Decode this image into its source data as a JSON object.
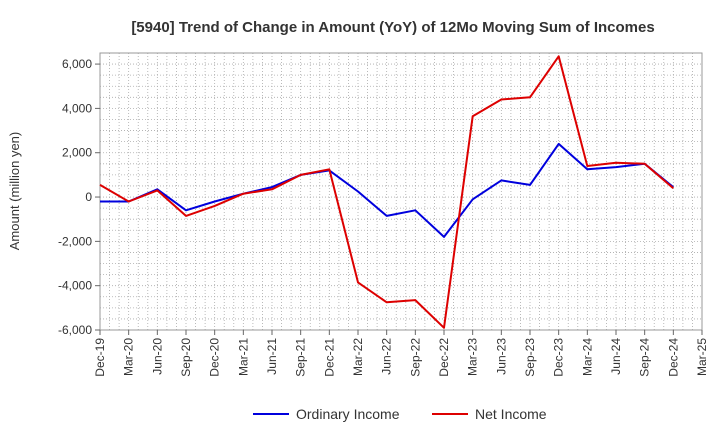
{
  "chart_data": {
    "type": "line",
    "title": "[5940]  Trend of Change in Amount (YoY) of 12Mo Moving Sum of Incomes",
    "ylabel": "Amount (million yen)",
    "xlabel": "",
    "ylim": [
      -6000,
      6500
    ],
    "yticks": [
      6000,
      4000,
      2000,
      0,
      -2000,
      -4000,
      -6000
    ],
    "ytick_labels": [
      "6,000",
      "4,000",
      "2,000",
      "0",
      "-2,000",
      "-4,000",
      "-6,000"
    ],
    "categories": [
      "Dec-19",
      "Mar-20",
      "Jun-20",
      "Sep-20",
      "Dec-20",
      "Mar-21",
      "Jun-21",
      "Sep-21",
      "Dec-21",
      "Mar-22",
      "Jun-22",
      "Sep-22",
      "Dec-22",
      "Mar-23",
      "Jun-23",
      "Sep-23",
      "Dec-23",
      "Mar-24",
      "Jun-24",
      "Sep-24",
      "Dec-24",
      "Mar-25"
    ],
    "grid": true,
    "legend_position": "bottom",
    "series": [
      {
        "name": "Ordinary Income",
        "color": "#0000dd",
        "values": [
          -200,
          -200,
          350,
          -600,
          -200,
          150,
          450,
          1000,
          1200,
          250,
          -850,
          -600,
          -1800,
          -100,
          750,
          550,
          2400,
          1250,
          1350,
          1500,
          450,
          null
        ]
      },
      {
        "name": "Net Income",
        "color": "#dd0000",
        "values": [
          550,
          -200,
          300,
          -850,
          -400,
          150,
          350,
          1000,
          1250,
          -3850,
          -4750,
          -4650,
          -5900,
          3650,
          4400,
          4500,
          6350,
          1400,
          1550,
          1500,
          400,
          null
        ]
      }
    ]
  }
}
